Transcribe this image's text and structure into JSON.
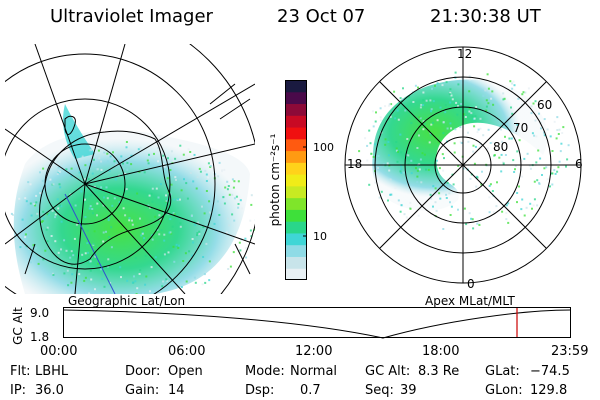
{
  "header": {
    "instrument": "Ultraviolet Imager",
    "date": "23 Oct 07",
    "time": "21:30:38 UT"
  },
  "geo_panel": {
    "label": "Geographic Lat/Lon"
  },
  "apex_panel": {
    "label": "Apex MLat/MLT",
    "mlt_labels": [
      "12",
      "18",
      "6",
      "0"
    ],
    "mlat_labels": [
      "60",
      "70",
      "80"
    ]
  },
  "colorbar": {
    "unit": "photon cm⁻²s⁻¹",
    "tick_labels": [
      "100",
      "10"
    ],
    "colors": [
      "#e8f0f4",
      "#c8e4ea",
      "#8fdbe6",
      "#3fd6d6",
      "#29d68a",
      "#3ee03a",
      "#7fe52a",
      "#c8ea22",
      "#f0ec18",
      "#ffd21a",
      "#ff9a12",
      "#ff5a10",
      "#f01010",
      "#c80a24",
      "#8c0a38",
      "#4a0a4a",
      "#1a1a40"
    ]
  },
  "altitude_plot": {
    "y_label": "GC Alt",
    "y_ticks": [
      "9.0",
      "1.8"
    ],
    "x_ticks": [
      "00:00",
      "06:00",
      "12:00",
      "18:00",
      "23:59"
    ],
    "marker_color": "#cc0000"
  },
  "status": {
    "filter_label": "Flt:",
    "filter_value": "LBHL",
    "ip_label": "IP:",
    "ip_value": "36.0",
    "door_label": "Door:",
    "door_value": "Open",
    "gain_label": "Gain:",
    "gain_value": "14",
    "mode_label": "Mode:",
    "mode_value": "Normal",
    "dsp_label": "Dsp:",
    "dsp_value": "0.7",
    "gcalt_label": "GC Alt:",
    "gcalt_value": "8.3 Re",
    "seq_label": "Seq:",
    "seq_value": "39",
    "glat_label": "GLat:",
    "glat_value": "−74.5",
    "glon_label": "GLon:",
    "glon_value": "129.8"
  }
}
